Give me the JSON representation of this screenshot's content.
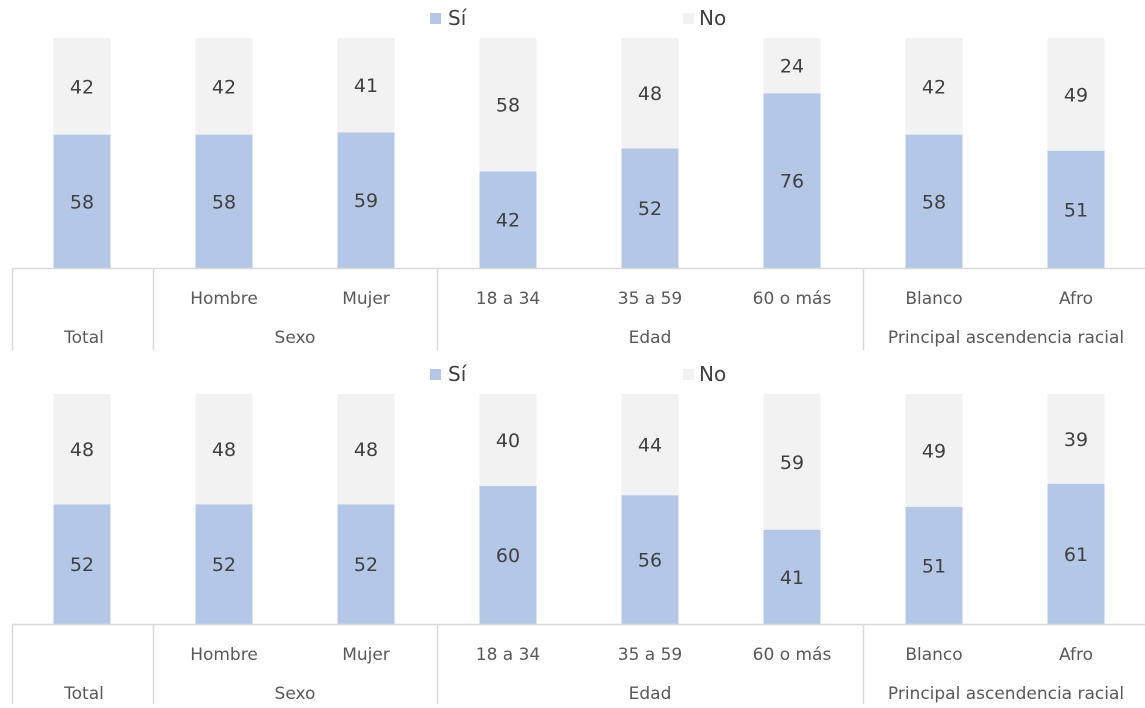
{
  "colors": {
    "si": "#b4c7e7",
    "no": "#f2f2f2",
    "text": "#404040",
    "axis_text": "#595959",
    "axis_line": "#d9d9d9"
  },
  "chart_data": [
    {
      "type": "bar",
      "stacked": true,
      "title": "",
      "categories": [
        "",
        "Hombre",
        "Mujer",
        "18 a 34",
        "35 a 59",
        "60 o más",
        "Blanco",
        "Afro"
      ],
      "groups": [
        {
          "label": "Total",
          "categories": [
            ""
          ]
        },
        {
          "label": "Sexo",
          "categories": [
            "Hombre",
            "Mujer"
          ]
        },
        {
          "label": "Edad",
          "categories": [
            "18 a 34",
            "35 a 59",
            "60 o más"
          ]
        },
        {
          "label": "Principal ascendencia racial",
          "categories": [
            "Blanco",
            "Afro"
          ]
        }
      ],
      "series": [
        {
          "name": "Sí",
          "color": "#b4c7e7",
          "values": [
            58,
            58,
            59,
            42,
            52,
            76,
            58,
            51
          ]
        },
        {
          "name": "No",
          "color": "#f2f2f2",
          "values": [
            42,
            42,
            41,
            58,
            48,
            24,
            42,
            49
          ]
        }
      ],
      "ylim": [
        0,
        100
      ],
      "legend": "top-center",
      "grid": false
    },
    {
      "type": "bar",
      "stacked": true,
      "title": "",
      "categories": [
        "",
        "Hombre",
        "Mujer",
        "18 a 34",
        "35 a 59",
        "60 o más",
        "Blanco",
        "Afro"
      ],
      "groups": [
        {
          "label": "Total",
          "categories": [
            ""
          ]
        },
        {
          "label": "Sexo",
          "categories": [
            "Hombre",
            "Mujer"
          ]
        },
        {
          "label": "Edad",
          "categories": [
            "18 a 34",
            "35 a 59",
            "60 o más"
          ]
        },
        {
          "label": "Principal ascendencia racial",
          "categories": [
            "Blanco",
            "Afro"
          ]
        }
      ],
      "series": [
        {
          "name": "Sí",
          "color": "#b4c7e7",
          "values": [
            52,
            52,
            52,
            60,
            56,
            41,
            51,
            61
          ]
        },
        {
          "name": "No",
          "color": "#f2f2f2",
          "values": [
            48,
            48,
            48,
            40,
            44,
            59,
            49,
            39
          ]
        }
      ],
      "ylim": [
        0,
        100
      ],
      "legend": "top-center",
      "grid": false
    }
  ]
}
